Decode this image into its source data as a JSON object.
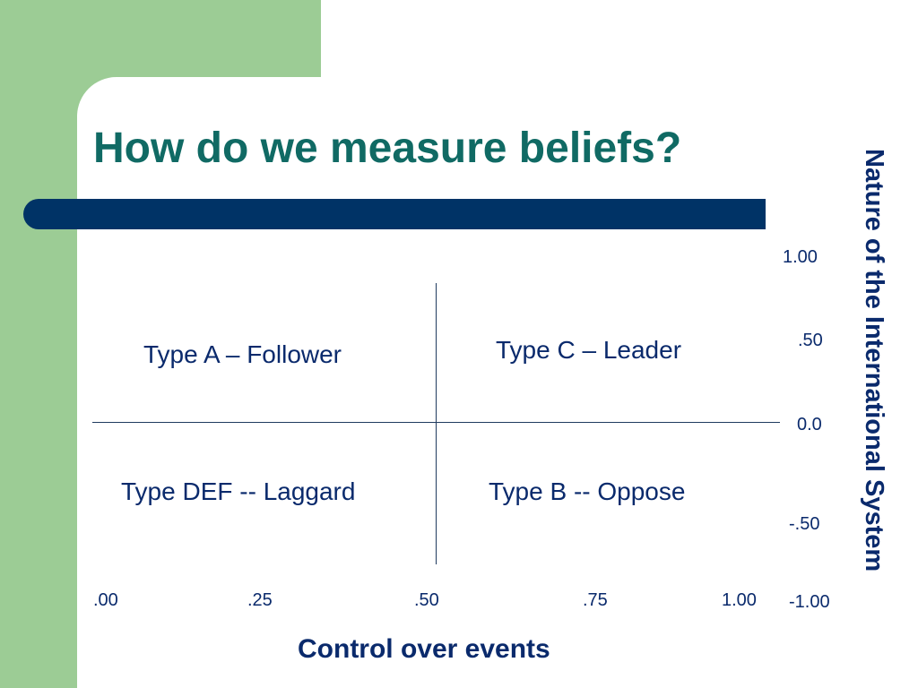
{
  "slide": {
    "title": "How do we measure beliefs?"
  },
  "colors": {
    "green_accent": "#9ccc95",
    "title_bar": "#003366",
    "title_text": "#106a64",
    "body_text": "#0a2a6c"
  },
  "diagram": {
    "quadrants": {
      "top_left": "Type A – Follower",
      "top_right": "Type C – Leader",
      "bottom_left": "Type DEF -- Laggard",
      "bottom_right": "Type B -- Oppose"
    },
    "x_axis": {
      "title": "Control over events",
      "ticks": [
        ".00",
        ".25",
        ".50",
        ".75",
        "1.00"
      ]
    },
    "y_axis": {
      "title": "Nature of the International System",
      "ticks": [
        "1.00",
        ".50",
        "0.0",
        "-.50",
        "-1.00"
      ]
    }
  }
}
